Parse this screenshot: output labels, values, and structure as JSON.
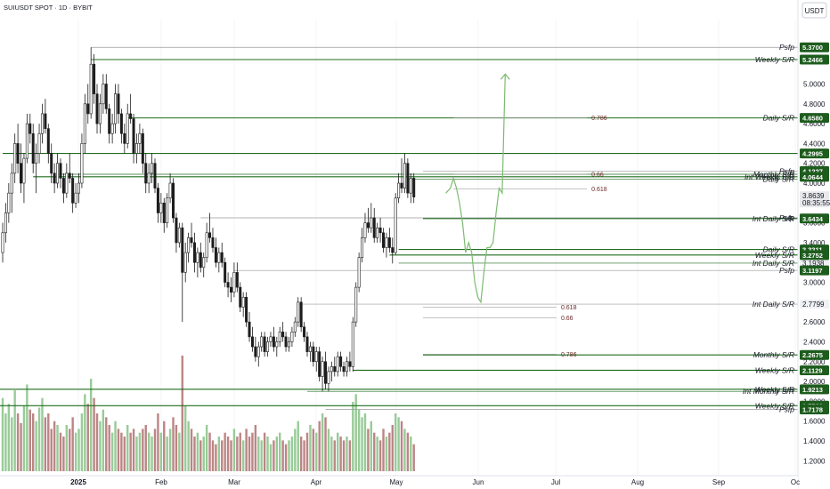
{
  "chart_data": {
    "type": "candlestick",
    "title": "SUIUSDT SPOT · 1D · BYBIT",
    "currency": "USDT",
    "ylim": [
      1.05,
      5.65
    ],
    "y_ticks": [
      1.2,
      1.4,
      1.6,
      1.8,
      2.0,
      2.2,
      2.4,
      2.6,
      2.8,
      3.0,
      3.2,
      3.4,
      3.6,
      3.8,
      4.0,
      4.2,
      4.4,
      4.6,
      4.8,
      5.0
    ],
    "x_ticks": [
      "2025",
      "Feb",
      "Mar",
      "Apr",
      "May",
      "Jun",
      "Jul",
      "Aug",
      "Sep",
      "Oc"
    ],
    "candles": [
      [
        3.3,
        3.6,
        3.2,
        3.5
      ],
      [
        3.5,
        3.8,
        3.4,
        3.7
      ],
      [
        3.7,
        4.0,
        3.6,
        3.9
      ],
      [
        3.9,
        4.2,
        3.7,
        4.1
      ],
      [
        4.1,
        4.5,
        4.0,
        4.4
      ],
      [
        4.4,
        4.6,
        4.1,
        4.2
      ],
      [
        4.2,
        4.4,
        3.9,
        4.0
      ],
      [
        4.0,
        4.3,
        3.8,
        4.25
      ],
      [
        4.25,
        4.7,
        4.2,
        4.6
      ],
      [
        4.6,
        4.7,
        4.4,
        4.5
      ],
      [
        4.5,
        4.6,
        4.1,
        4.2
      ],
      [
        4.2,
        4.4,
        3.9,
        4.3
      ],
      [
        4.3,
        4.6,
        4.2,
        4.5
      ],
      [
        4.5,
        4.8,
        4.4,
        4.7
      ],
      [
        4.7,
        4.85,
        4.5,
        4.55
      ],
      [
        4.55,
        4.6,
        4.2,
        4.3
      ],
      [
        4.3,
        4.4,
        4.0,
        4.1
      ],
      [
        4.1,
        4.2,
        3.9,
        4.0
      ],
      [
        4.0,
        4.3,
        3.95,
        4.2
      ],
      [
        4.2,
        4.25,
        3.95,
        4.05
      ],
      [
        4.05,
        4.1,
        3.8,
        3.9
      ],
      [
        3.9,
        4.2,
        3.85,
        4.1
      ],
      [
        4.1,
        4.3,
        4.0,
        4.05
      ],
      [
        4.05,
        4.1,
        3.7,
        3.8
      ],
      [
        3.8,
        4.0,
        3.75,
        3.9
      ],
      [
        3.9,
        4.1,
        3.8,
        4.0
      ],
      [
        4.0,
        4.5,
        3.95,
        4.4
      ],
      [
        4.4,
        4.9,
        4.3,
        4.8
      ],
      [
        4.8,
        5.0,
        4.6,
        4.7
      ],
      [
        4.7,
        5.37,
        4.65,
        5.2
      ],
      [
        5.2,
        5.3,
        4.8,
        4.9
      ],
      [
        4.9,
        5.0,
        4.5,
        4.6
      ],
      [
        4.6,
        4.9,
        4.5,
        4.8
      ],
      [
        4.8,
        5.1,
        4.7,
        5.0
      ],
      [
        5.0,
        5.1,
        4.7,
        4.75
      ],
      [
        4.75,
        4.8,
        4.4,
        4.5
      ],
      [
        4.5,
        4.7,
        4.4,
        4.6
      ],
      [
        4.6,
        5.0,
        4.5,
        4.9
      ],
      [
        4.9,
        5.0,
        4.6,
        4.7
      ],
      [
        4.7,
        4.75,
        4.4,
        4.5
      ],
      [
        4.5,
        4.6,
        4.3,
        4.4
      ],
      [
        4.4,
        4.8,
        4.35,
        4.7
      ],
      [
        4.7,
        4.9,
        4.6,
        4.65
      ],
      [
        4.65,
        4.7,
        4.2,
        4.3
      ],
      [
        4.3,
        4.5,
        4.2,
        4.4
      ],
      [
        4.4,
        4.6,
        4.3,
        4.5
      ],
      [
        4.5,
        4.55,
        4.1,
        4.2
      ],
      [
        4.2,
        4.3,
        3.9,
        4.0
      ],
      [
        4.0,
        4.2,
        3.9,
        4.1
      ],
      [
        4.1,
        4.3,
        4.0,
        4.2
      ],
      [
        4.2,
        4.25,
        3.9,
        3.95
      ],
      [
        3.95,
        4.0,
        3.6,
        3.7
      ],
      [
        3.7,
        3.9,
        3.6,
        3.8
      ],
      [
        3.8,
        3.85,
        3.5,
        3.6
      ],
      [
        3.6,
        3.9,
        3.55,
        3.85
      ],
      [
        3.85,
        4.1,
        3.8,
        4.0
      ],
      [
        4.0,
        4.05,
        3.6,
        3.65
      ],
      [
        3.65,
        3.7,
        3.3,
        3.4
      ],
      [
        3.4,
        3.6,
        3.35,
        3.55
      ],
      [
        3.55,
        3.6,
        2.6,
        3.1
      ],
      [
        3.1,
        3.4,
        3.0,
        3.3
      ],
      [
        3.3,
        3.5,
        3.2,
        3.45
      ],
      [
        3.45,
        3.6,
        3.35,
        3.4
      ],
      [
        3.4,
        3.5,
        3.1,
        3.2
      ],
      [
        3.2,
        3.35,
        3.05,
        3.3
      ],
      [
        3.3,
        3.4,
        3.1,
        3.15
      ],
      [
        3.15,
        3.3,
        3.05,
        3.25
      ],
      [
        3.25,
        3.6,
        3.2,
        3.5
      ],
      [
        3.5,
        3.7,
        3.4,
        3.45
      ],
      [
        3.45,
        3.55,
        3.3,
        3.35
      ],
      [
        3.35,
        3.45,
        3.15,
        3.2
      ],
      [
        3.2,
        3.35,
        3.1,
        3.3
      ],
      [
        3.3,
        3.4,
        3.15,
        3.2
      ],
      [
        3.2,
        3.25,
        2.95,
        3.0
      ],
      [
        3.0,
        3.1,
        2.85,
        2.95
      ],
      [
        2.95,
        3.05,
        2.8,
        2.9
      ],
      [
        2.9,
        3.2,
        2.85,
        3.1
      ],
      [
        3.1,
        3.2,
        2.9,
        2.95
      ],
      [
        2.95,
        3.0,
        2.7,
        2.75
      ],
      [
        2.75,
        2.9,
        2.65,
        2.85
      ],
      [
        2.85,
        2.9,
        2.55,
        2.6
      ],
      [
        2.6,
        2.7,
        2.4,
        2.45
      ],
      [
        2.45,
        2.55,
        2.3,
        2.35
      ],
      [
        2.35,
        2.45,
        2.2,
        2.25
      ],
      [
        2.25,
        2.4,
        2.15,
        2.35
      ],
      [
        2.35,
        2.5,
        2.3,
        2.45
      ],
      [
        2.45,
        2.5,
        2.25,
        2.3
      ],
      [
        2.3,
        2.45,
        2.25,
        2.4
      ],
      [
        2.4,
        2.5,
        2.35,
        2.45
      ],
      [
        2.45,
        2.55,
        2.3,
        2.35
      ],
      [
        2.35,
        2.45,
        2.25,
        2.4
      ],
      [
        2.4,
        2.55,
        2.35,
        2.5
      ],
      [
        2.5,
        2.6,
        2.4,
        2.45
      ],
      [
        2.45,
        2.5,
        2.3,
        2.35
      ],
      [
        2.35,
        2.45,
        2.3,
        2.4
      ],
      [
        2.4,
        2.55,
        2.35,
        2.5
      ],
      [
        2.5,
        2.65,
        2.45,
        2.6
      ],
      [
        2.6,
        2.85,
        2.55,
        2.8
      ],
      [
        2.8,
        2.85,
        2.5,
        2.55
      ],
      [
        2.55,
        2.6,
        2.4,
        2.45
      ],
      [
        2.45,
        2.5,
        2.25,
        2.3
      ],
      [
        2.3,
        2.4,
        2.2,
        2.35
      ],
      [
        2.35,
        2.4,
        2.15,
        2.2
      ],
      [
        2.2,
        2.35,
        2.1,
        2.3
      ],
      [
        2.3,
        2.35,
        2.0,
        2.05
      ],
      [
        2.05,
        2.25,
        1.9,
        2.2
      ],
      [
        2.2,
        2.3,
        1.92,
        1.98
      ],
      [
        1.98,
        2.15,
        1.9,
        2.1
      ],
      [
        2.1,
        2.2,
        2.0,
        2.15
      ],
      [
        2.15,
        2.25,
        2.05,
        2.1
      ],
      [
        2.1,
        2.3,
        2.05,
        2.25
      ],
      [
        2.25,
        2.3,
        2.1,
        2.15
      ],
      [
        2.15,
        2.2,
        2.05,
        2.1
      ],
      [
        2.1,
        2.25,
        2.05,
        2.2
      ],
      [
        2.2,
        2.3,
        2.1,
        2.15
      ],
      [
        2.15,
        2.65,
        2.1,
        2.6
      ],
      [
        2.6,
        3.0,
        2.55,
        2.95
      ],
      [
        2.95,
        3.3,
        2.9,
        3.25
      ],
      [
        3.25,
        3.55,
        3.2,
        3.45
      ],
      [
        3.45,
        3.7,
        3.4,
        3.6
      ],
      [
        3.6,
        3.75,
        3.5,
        3.55
      ],
      [
        3.55,
        3.8,
        3.5,
        3.65
      ],
      [
        3.65,
        3.75,
        3.4,
        3.45
      ],
      [
        3.45,
        3.6,
        3.4,
        3.55
      ],
      [
        3.55,
        3.65,
        3.4,
        3.5
      ],
      [
        3.5,
        3.55,
        3.3,
        3.35
      ],
      [
        3.35,
        3.5,
        3.25,
        3.45
      ],
      [
        3.45,
        3.55,
        3.3,
        3.35
      ],
      [
        3.35,
        3.45,
        3.19,
        3.3
      ],
      [
        3.3,
        3.9,
        3.28,
        3.85
      ],
      [
        3.85,
        4.1,
        3.8,
        4.0
      ],
      [
        4.0,
        4.25,
        3.9,
        3.95
      ],
      [
        3.95,
        4.3,
        3.9,
        4.2
      ],
      [
        4.2,
        4.25,
        3.85,
        3.9
      ],
      [
        3.9,
        4.1,
        3.8,
        4.05
      ],
      [
        4.05,
        4.1,
        3.8,
        3.86
      ]
    ],
    "volume": [
      38,
      30,
      35,
      28,
      42,
      30,
      25,
      34,
      45,
      32,
      30,
      26,
      33,
      38,
      28,
      30,
      22,
      26,
      24,
      20,
      18,
      24,
      22,
      28,
      20,
      22,
      30,
      40,
      35,
      48,
      38,
      30,
      26,
      32,
      28,
      24,
      20,
      26,
      22,
      20,
      18,
      24,
      20,
      22,
      18,
      20,
      22,
      24,
      20,
      18,
      22,
      30,
      20,
      26,
      18,
      22,
      28,
      24,
      20,
      60,
      34,
      26,
      22,
      18,
      20,
      16,
      18,
      24,
      20,
      16,
      14,
      18,
      16,
      20,
      18,
      16,
      22,
      18,
      20,
      16,
      22,
      18,
      20,
      24,
      18,
      16,
      20,
      18,
      14,
      16,
      18,
      20,
      16,
      14,
      16,
      18,
      22,
      26,
      18,
      16,
      20,
      24,
      22,
      20,
      26,
      30,
      28,
      22,
      18,
      16,
      20,
      18,
      16,
      18,
      16,
      36,
      40,
      32,
      28,
      30,
      22,
      26,
      20,
      18,
      16,
      22,
      18,
      20,
      24,
      30,
      28,
      26,
      22,
      20,
      18,
      14
    ],
    "levels": [
      {
        "value": 5.37,
        "style": "thin",
        "color": "#9a9a9a",
        "x_start_index": 29,
        "label": "Psfp",
        "badge": "5.3700",
        "badge_color": "#1e5c1e"
      },
      {
        "value": 5.2466,
        "style": "thick",
        "color": "#1f6d1f",
        "x_start_index": 29,
        "label": "Weekly S/R",
        "badge": "5.2466",
        "badge_color": "#1e5c1e"
      },
      {
        "value": 4.658,
        "style": "thick",
        "color": "#1f6d1f",
        "x_start_index": 41,
        "label": "Daily S/R",
        "badge": "4.6580",
        "badge_color": "#1e5c1e"
      },
      {
        "value": 4.2995,
        "style": "thick",
        "color": "#1f6d1f",
        "x_start_index": 0,
        "label": "",
        "badge": "4.2995",
        "badge_color": "#1e5c1e"
      },
      {
        "value": 4.1227,
        "style": "thin",
        "color": "#9a9a9a",
        "x_start_index": 138,
        "label": "Psfp",
        "badge": "4.1227",
        "badge_color": "#1e5c1e"
      },
      {
        "value": 4.09,
        "style": "thin",
        "color": "#1f6d1f",
        "x_start_index": 18,
        "label": "Monthly S/R",
        "badge": "",
        "badge_color": ""
      },
      {
        "value": 4.0644,
        "style": "thick",
        "color": "#1f6d1f",
        "x_start_index": 10,
        "label": "Int Weekly S/R",
        "badge": "4.0644",
        "badge_color": "#1e5c1e"
      },
      {
        "value": 4.04,
        "style": "thin",
        "color": "#1f6d1f",
        "x_start_index": 133,
        "label": "Daily S/R",
        "badge": "",
        "badge_color": ""
      },
      {
        "value": 3.6502,
        "style": "thin",
        "color": "#9a9a9a",
        "x_start_index": 65,
        "label": "Psfp",
        "badge": "",
        "badge_color": ""
      },
      {
        "value": 3.6434,
        "style": "thick",
        "color": "#1f6d1f",
        "x_start_index": 138,
        "label": "Int Daily S/R",
        "badge": "3.6434",
        "badge_color": "#1e5c1e"
      },
      {
        "value": 3.3311,
        "style": "thick",
        "color": "#1f6d1f",
        "x_start_index": 130,
        "label": "Daily S/R",
        "badge": "3.3311",
        "badge_color": "#1e5c1e"
      },
      {
        "value": 3.2752,
        "style": "thick",
        "color": "#1f6d1f",
        "x_start_index": 127,
        "label": "Weekly S/R",
        "badge": "3.2752",
        "badge_color": "#1e5c1e"
      },
      {
        "value": 3.1938,
        "style": "thin",
        "color": "#1f6d1f",
        "x_start_index": 130,
        "label": "Int Daily S/R",
        "badge": "",
        "badge_color": ""
      },
      {
        "value": 3.1197,
        "style": "thin",
        "color": "#9a9a9a",
        "x_start_index": 76,
        "label": "Psfp",
        "badge": "3.1197",
        "badge_color": "#1e5c1e"
      },
      {
        "value": 2.7799,
        "style": "thin",
        "color": "#9a9a9a",
        "x_start_index": 97,
        "label": "Int Daily S/R",
        "badge": "",
        "badge_color": ""
      },
      {
        "value": 2.2675,
        "style": "thick",
        "color": "#1f6d1f",
        "x_start_index": 138,
        "label": "Monthly S/R",
        "badge": "2.2675",
        "badge_color": "#1e5c1e"
      },
      {
        "value": 2.1129,
        "style": "thick",
        "color": "#1f6d1f",
        "x_start_index": 115,
        "label": "Weekly S/R",
        "badge": "2.1129",
        "badge_color": "#1e5c1e"
      },
      {
        "value": 1.9213,
        "style": "thick",
        "color": "#1f6d1f",
        "x_start_index": -5,
        "label": "Weekly S/R",
        "badge": "1.9213",
        "badge_color": "#1e5c1e"
      },
      {
        "value": 1.9,
        "style": "thin",
        "color": "#1f6d1f",
        "x_start_index": 100,
        "label": "Int Monthly S/R",
        "badge": "",
        "badge_color": ""
      },
      {
        "value": 1.756,
        "style": "thick",
        "color": "#1f6d1f",
        "x_start_index": -5,
        "label": "Weekly S/R",
        "badge": "1.7560",
        "badge_color": "#1e5c1e"
      },
      {
        "value": 1.7178,
        "style": "thin",
        "color": "#9a9a9a",
        "x_start_index": 106,
        "label": "Psfp",
        "badge": "1.7178",
        "badge_color": "#1e5c1e"
      }
    ],
    "fib_levels": [
      {
        "value": 4.66,
        "label": "0.786",
        "x_start_index": 148
      },
      {
        "value": 4.09,
        "label": "0.66",
        "x_start_index": 148
      },
      {
        "value": 3.94,
        "label": "0.618",
        "x_start_index": 148
      },
      {
        "value": 2.75,
        "label": "0.618",
        "x_start_index": 138
      },
      {
        "value": 2.64,
        "label": "0.66",
        "x_start_index": 138
      },
      {
        "value": 2.275,
        "label": "0.786",
        "x_start_index": 138
      }
    ],
    "gray_badges": [
      {
        "value": 4.0927,
        "label": "4.0927"
      },
      {
        "value": 3.6502,
        "label": "3.6502"
      },
      {
        "value": 3.1938,
        "label": "3.1938"
      },
      {
        "value": 2.7799,
        "label": "2.7799"
      },
      {
        "value": 1.9143,
        "label": "1.9143"
      }
    ],
    "current_price": {
      "value": 3.8639,
      "label": "3.8639",
      "countdown": "08:35:55"
    },
    "projection": [
      [
        145.5,
        3.9
      ],
      [
        147.0,
        3.95
      ],
      [
        148.0,
        4.05
      ],
      [
        149.0,
        3.95
      ],
      [
        150.0,
        3.8
      ],
      [
        151.0,
        3.6
      ],
      [
        152.0,
        3.3
      ],
      [
        153.0,
        3.4
      ],
      [
        154.0,
        3.3
      ],
      [
        155.0,
        3.0
      ],
      [
        156.0,
        2.85
      ],
      [
        157.0,
        2.8
      ],
      [
        158.0,
        3.1
      ],
      [
        159.0,
        3.35
      ],
      [
        160.0,
        3.35
      ],
      [
        161.0,
        3.4
      ],
      [
        162.0,
        3.7
      ],
      [
        163.0,
        3.95
      ],
      [
        164.0,
        3.9
      ],
      [
        165.0,
        5.1
      ]
    ]
  }
}
